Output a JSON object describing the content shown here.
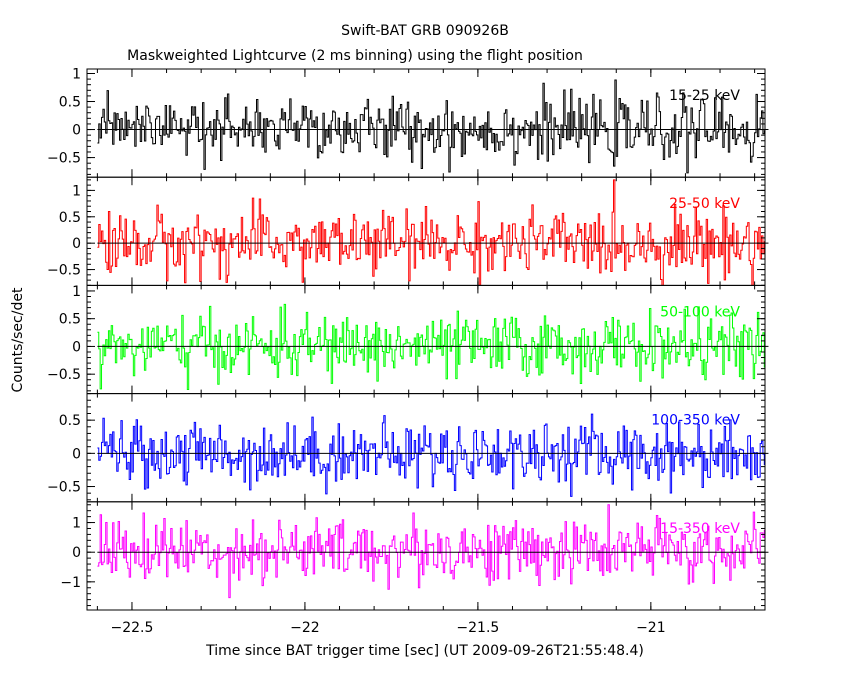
{
  "chart_data": {
    "type": "line",
    "title": "Swift-BAT GRB 090926B",
    "subtitle": "Maskweighted Lightcurve (2 ms binning) using the flight position",
    "xlabel": "Time since BAT trigger time [sec] (UT 2009-09-26T21:55:48.4)",
    "ylabel": "Counts/sec/det",
    "xlim": [
      -22.63,
      -20.67
    ],
    "x_ticks": [
      -22.5,
      -22,
      -21.5,
      -21
    ],
    "x_tick_labels": [
      "−22.5",
      "−22",
      "−21.5",
      "−21"
    ],
    "data_x_range": [
      -22.6,
      -20.66
    ],
    "bin_width_sec": 0.002,
    "grid": false,
    "legend": "inside each panel, top-right",
    "series": [
      {
        "name": "15-25 keV",
        "color": "#000000",
        "ylim": [
          -0.85,
          1.08
        ],
        "y_ticks": [
          -0.5,
          0,
          0.5,
          1
        ],
        "y_tick_labels": [
          "−0.5",
          "0",
          "0.5",
          "1"
        ],
        "approx_range": [
          -0.8,
          1.0
        ],
        "mean": 0.0
      },
      {
        "name": "25-50 keV",
        "color": "#ff0000",
        "ylim": [
          -0.8,
          1.25
        ],
        "y_ticks": [
          -0.5,
          0,
          0.5,
          1
        ],
        "y_tick_labels": [
          "−0.5",
          "0",
          "0.5",
          "1"
        ],
        "approx_range": [
          -0.8,
          1.2
        ],
        "mean": 0.0
      },
      {
        "name": "50-100 keV",
        "color": "#00ff00",
        "ylim": [
          -0.85,
          1.1
        ],
        "y_ticks": [
          -0.5,
          0,
          0.5,
          1
        ],
        "y_tick_labels": [
          "−0.5",
          "0",
          "0.5",
          "1"
        ],
        "approx_range": [
          -0.8,
          1.0
        ],
        "mean": 0.0
      },
      {
        "name": "100-350 keV",
        "color": "#0000ff",
        "ylim": [
          -0.73,
          0.9
        ],
        "y_ticks": [
          -0.5,
          0,
          0.5
        ],
        "y_tick_labels": [
          "−0.5",
          "0",
          "0.5"
        ],
        "approx_range": [
          -0.7,
          0.85
        ],
        "mean": 0.0
      },
      {
        "name": "15-350 keV",
        "color": "#ff00ff",
        "ylim": [
          -1.95,
          1.7
        ],
        "y_ticks": [
          -1,
          0,
          1
        ],
        "y_tick_labels": [
          "−1",
          "0",
          "1"
        ],
        "approx_range": [
          -1.9,
          1.6
        ],
        "mean": 0.05
      }
    ]
  }
}
